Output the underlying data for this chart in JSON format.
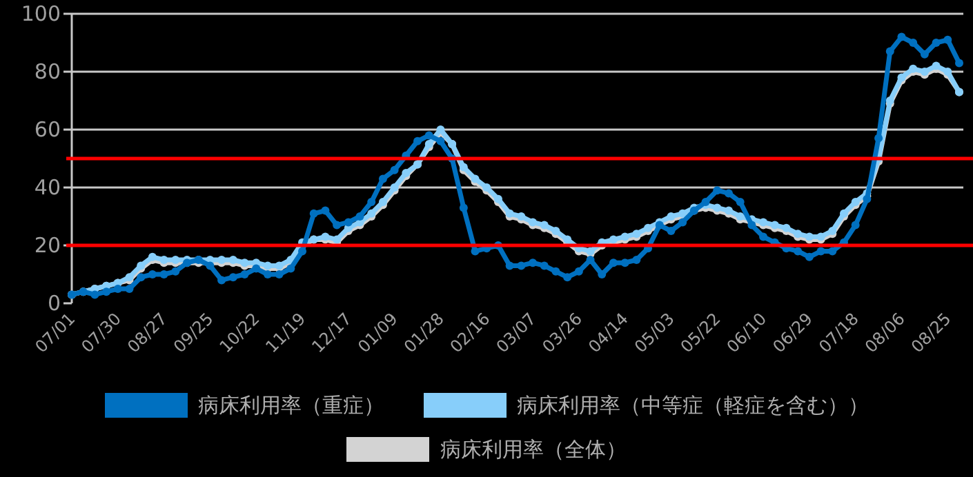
{
  "chart_data": {
    "type": "line",
    "categories": [
      "07/01",
      null,
      null,
      null,
      "07/30",
      null,
      null,
      null,
      "08/27",
      null,
      null,
      null,
      "09/25",
      null,
      null,
      null,
      "10/22",
      null,
      null,
      null,
      "11/19",
      null,
      null,
      null,
      "12/17",
      null,
      null,
      null,
      "01/09",
      null,
      null,
      null,
      "01/28",
      null,
      null,
      null,
      "02/16",
      null,
      null,
      null,
      "03/07",
      null,
      null,
      null,
      "03/26",
      null,
      null,
      null,
      "04/14",
      null,
      null,
      null,
      "05/03",
      null,
      null,
      null,
      "05/22",
      null,
      null,
      null,
      "06/10",
      null,
      null,
      null,
      "06/29",
      null,
      null,
      null,
      "07/18",
      null,
      null,
      null,
      "08/06",
      null,
      null,
      null,
      "08/25",
      null
    ],
    "series": [
      {
        "name": "病床利用率（全体）",
        "color": "#d3d3d3",
        "values": [
          3,
          4,
          5,
          6,
          7,
          8,
          12,
          15,
          14,
          14,
          14,
          14,
          14,
          14,
          14,
          13,
          13,
          12,
          12,
          14,
          20,
          22,
          22,
          21,
          25,
          27,
          30,
          34,
          39,
          44,
          48,
          54,
          59,
          55,
          46,
          42,
          39,
          35,
          30,
          29,
          27,
          26,
          24,
          21,
          18,
          17,
          20,
          21,
          22,
          23,
          25,
          27,
          29,
          30,
          32,
          33,
          32,
          31,
          29,
          28,
          27,
          26,
          25,
          23,
          22,
          22,
          24,
          30,
          34,
          37,
          49,
          69,
          77,
          80,
          79,
          81,
          79,
          73
        ]
      },
      {
        "name": "病床利用率（中等症（軽症を含む））",
        "color": "#87cefa",
        "values": [
          3,
          4,
          5,
          6,
          7,
          9,
          13,
          16,
          15,
          15,
          15,
          15,
          15,
          15,
          15,
          14,
          14,
          13,
          13,
          15,
          21,
          22,
          23,
          22,
          26,
          28,
          31,
          35,
          40,
          45,
          48,
          55,
          60,
          55,
          47,
          43,
          40,
          36,
          31,
          30,
          28,
          27,
          25,
          22,
          19,
          18,
          21,
          22,
          23,
          24,
          26,
          28,
          30,
          31,
          33,
          34,
          33,
          32,
          30,
          29,
          28,
          27,
          26,
          24,
          23,
          23,
          25,
          31,
          35,
          38,
          50,
          70,
          78,
          81,
          80,
          82,
          80,
          73
        ]
      },
      {
        "name": "病床利用率（重症）",
        "color": "#0070c0",
        "values": [
          3,
          4,
          3,
          4,
          5,
          5,
          9,
          10,
          10,
          11,
          14,
          15,
          13,
          8,
          9,
          10,
          12,
          10,
          10,
          12,
          18,
          31,
          32,
          27,
          28,
          30,
          35,
          43,
          46,
          51,
          56,
          58,
          56,
          50,
          33,
          18,
          19,
          20,
          13,
          13,
          14,
          13,
          11,
          9,
          11,
          15,
          10,
          14,
          14,
          15,
          19,
          27,
          25,
          28,
          32,
          35,
          39,
          38,
          35,
          27,
          23,
          21,
          19,
          18,
          16,
          18,
          18,
          21,
          27,
          36,
          57,
          87,
          92,
          90,
          86,
          90,
          91,
          83
        ]
      }
    ],
    "ylim": [
      0,
      100
    ],
    "yticks": [
      0,
      20,
      40,
      60,
      80,
      100
    ],
    "grid": "y",
    "legend": "bottom",
    "marker": "circle",
    "line_style": "solid",
    "ref_lines": [
      {
        "axis": "y",
        "value": 20,
        "color": "#ff0000"
      },
      {
        "axis": "y",
        "value": 50,
        "color": "#ff0000"
      }
    ]
  }
}
